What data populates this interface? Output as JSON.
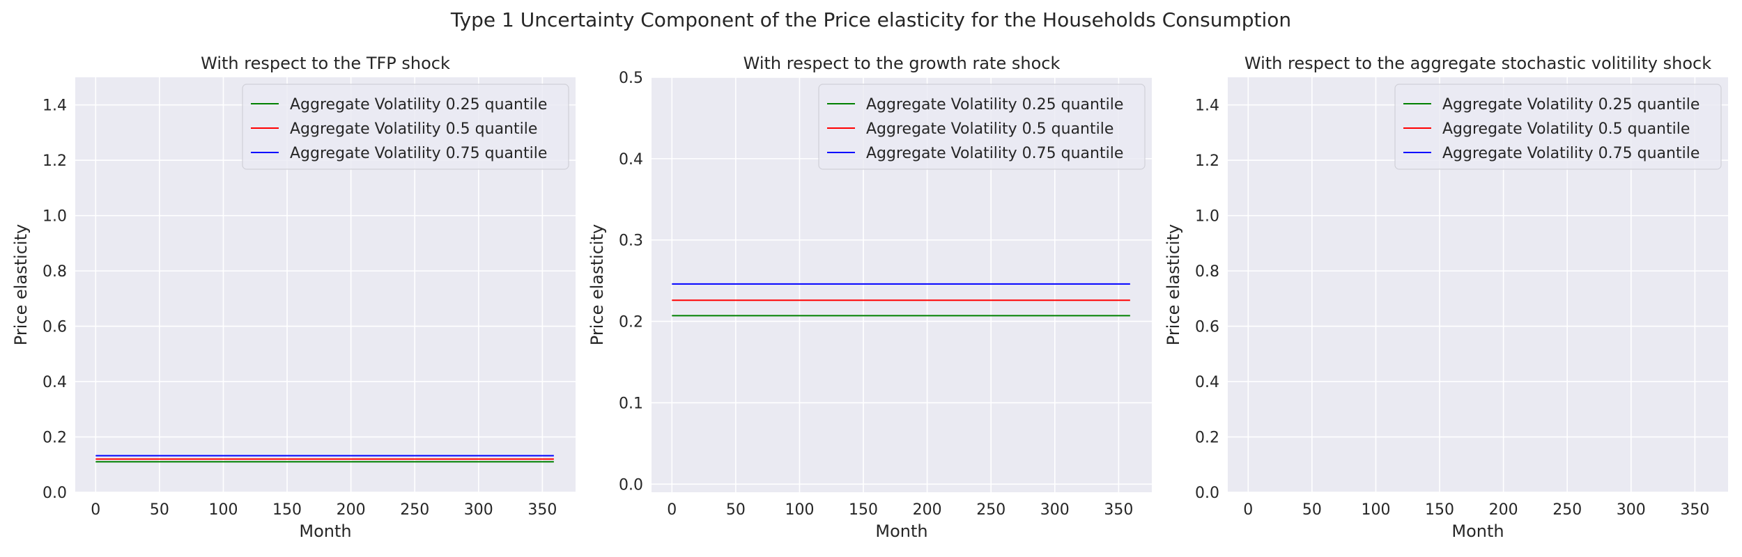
{
  "suptitle": "Type 1 Uncertainty Component of the Price elasticity for the Households Consumption",
  "colors": {
    "background": "#eaeaf2",
    "grid": "#ffffff",
    "q25": "#008000",
    "q50": "#ff0000",
    "q75": "#0000ff"
  },
  "chart_data": [
    {
      "type": "line",
      "title": "With respect to the TFP shock",
      "xlabel": "Month",
      "ylabel": "Price elasticity",
      "xlim": [
        -16,
        376
      ],
      "ylim": [
        0,
        1.5
      ],
      "xticks": [
        0,
        50,
        100,
        150,
        200,
        250,
        300,
        350
      ],
      "yticks": [
        0.0,
        0.2,
        0.4,
        0.6,
        0.8,
        1.0,
        1.2,
        1.4
      ],
      "ytick_labels": [
        "0.0",
        "0.2",
        "0.4",
        "0.6",
        "0.8",
        "1.0",
        "1.2",
        "1.4"
      ],
      "grid": true,
      "legend": "top-right",
      "x": [
        0,
        359
      ],
      "series": [
        {
          "name": "Aggregate Volatility 0.25 quantile",
          "color": "#008000",
          "values": [
            0.11,
            0.11
          ]
        },
        {
          "name": "Aggregate Volatility 0.5 quantile",
          "color": "#ff0000",
          "values": [
            0.12,
            0.12
          ]
        },
        {
          "name": "Aggregate Volatility 0.75 quantile",
          "color": "#0000ff",
          "values": [
            0.132,
            0.132
          ]
        }
      ]
    },
    {
      "type": "line",
      "title": "With respect to the growth rate shock",
      "xlabel": "Month",
      "ylabel": "Price elasticity",
      "xlim": [
        -16,
        376
      ],
      "ylim": [
        -0.01,
        0.5
      ],
      "xticks": [
        0,
        50,
        100,
        150,
        200,
        250,
        300,
        350
      ],
      "yticks": [
        0.0,
        0.1,
        0.2,
        0.3,
        0.4,
        0.5
      ],
      "ytick_labels": [
        "0.0",
        "0.1",
        "0.2",
        "0.3",
        "0.4",
        "0.5"
      ],
      "grid": true,
      "legend": "top-right",
      "x": [
        0,
        359
      ],
      "series": [
        {
          "name": "Aggregate Volatility 0.25 quantile",
          "color": "#008000",
          "values": [
            0.207,
            0.207
          ]
        },
        {
          "name": "Aggregate Volatility 0.5 quantile",
          "color": "#ff0000",
          "values": [
            0.226,
            0.226
          ]
        },
        {
          "name": "Aggregate Volatility 0.75 quantile",
          "color": "#0000ff",
          "values": [
            0.246,
            0.246
          ]
        }
      ]
    },
    {
      "type": "line",
      "title": "With respect to the aggregate stochastic volitility shock",
      "xlabel": "Month",
      "ylabel": "Price elasticity",
      "xlim": [
        -16,
        376
      ],
      "ylim": [
        0,
        1.5
      ],
      "xticks": [
        0,
        50,
        100,
        150,
        200,
        250,
        300,
        350
      ],
      "yticks": [
        0.0,
        0.2,
        0.4,
        0.6,
        0.8,
        1.0,
        1.2,
        1.4
      ],
      "ytick_labels": [
        "0.0",
        "0.2",
        "0.4",
        "0.6",
        "0.8",
        "1.0",
        "1.2",
        "1.4"
      ],
      "grid": true,
      "legend": "top-right",
      "x": [],
      "series": [
        {
          "name": "Aggregate Volatility 0.25 quantile",
          "color": "#008000",
          "values": []
        },
        {
          "name": "Aggregate Volatility 0.5 quantile",
          "color": "#ff0000",
          "values": []
        },
        {
          "name": "Aggregate Volatility 0.75 quantile",
          "color": "#0000ff",
          "values": []
        }
      ]
    }
  ]
}
